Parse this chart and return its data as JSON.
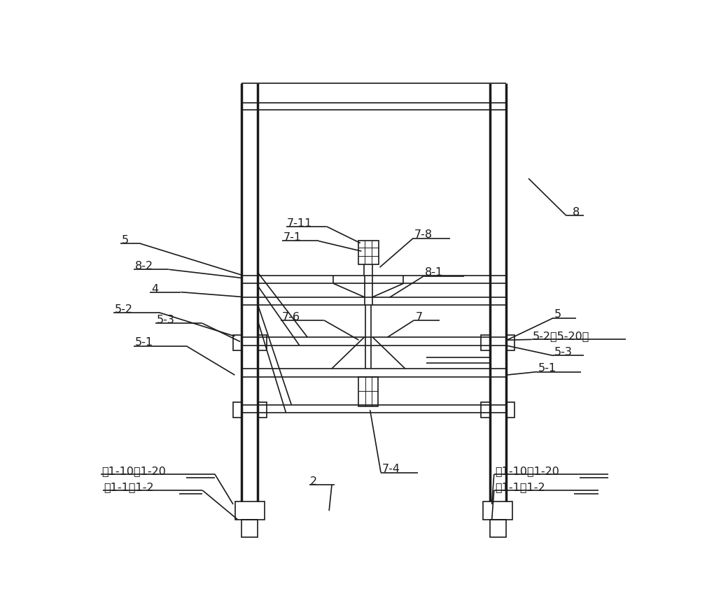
{
  "bg_color": "#ffffff",
  "lc": "#1a1a1a",
  "lw": 1.2,
  "tlw": 2.5,
  "fig_w": 10.3,
  "fig_h": 8.75,
  "dpi": 100
}
